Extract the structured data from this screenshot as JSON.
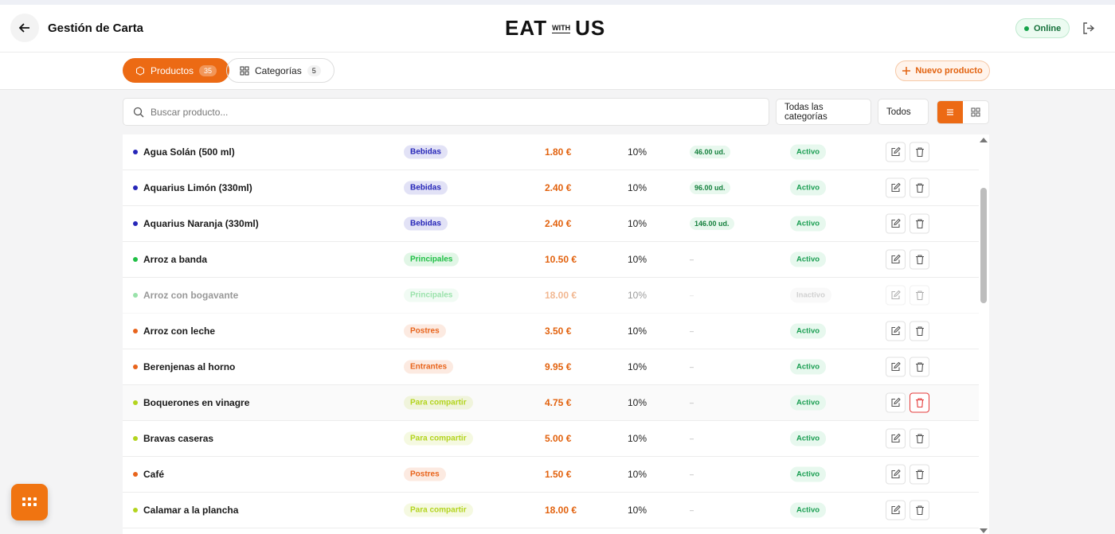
{
  "header": {
    "title": "Gestión de Carta",
    "logo": [
      "EAT",
      "WITH",
      "US"
    ],
    "status": "Online"
  },
  "tabs": [
    {
      "label": "Productos",
      "count": "35"
    },
    {
      "label": "Categorías",
      "count": "5"
    }
  ],
  "new_button": "Nuevo producto",
  "filters": {
    "search_placeholder": "Buscar producto...",
    "category": "Todas las categorías",
    "status": "Todos"
  },
  "rows": [
    {
      "name": "Agua Solán (500 ml)",
      "category": "Bebidas",
      "price": "1.80 €",
      "tax": "10%",
      "stock": "46.00 ud.",
      "status": "Activo",
      "color": "#2626b8"
    },
    {
      "name": "Aquarius Limón (330ml)",
      "category": "Bebidas",
      "price": "2.40 €",
      "tax": "10%",
      "stock": "96.00 ud.",
      "status": "Activo",
      "color": "#2626b8"
    },
    {
      "name": "Aquarius Naranja (330ml)",
      "category": "Bebidas",
      "price": "2.40 €",
      "tax": "10%",
      "stock": "146.00 ud.",
      "status": "Activo",
      "color": "#2626b8"
    },
    {
      "name": "Arroz a banda",
      "category": "Principales",
      "price": "10.50 €",
      "tax": "10%",
      "stock": "–",
      "status": "Activo",
      "color": "#1fbf45"
    },
    {
      "name": "Arroz con bogavante",
      "category": "Principales",
      "price": "18.00 €",
      "tax": "10%",
      "stock": "–",
      "status": "Inactivo",
      "color": "#1fbf45"
    },
    {
      "name": "Arroz con leche",
      "category": "Postres",
      "price": "3.50 €",
      "tax": "10%",
      "stock": "–",
      "status": "Activo",
      "color": "#e8641c"
    },
    {
      "name": "Berenjenas al horno",
      "category": "Entrantes",
      "price": "9.95 €",
      "tax": "10%",
      "stock": "–",
      "status": "Activo",
      "color": "#e8641c"
    },
    {
      "name": "Boquerones en vinagre",
      "category": "Para compartir",
      "price": "4.75 €",
      "tax": "10%",
      "stock": "–",
      "status": "Activo",
      "color": "#b3d41e"
    },
    {
      "name": "Bravas caseras",
      "category": "Para compartir",
      "price": "5.00 €",
      "tax": "10%",
      "stock": "–",
      "status": "Activo",
      "color": "#b3d41e"
    },
    {
      "name": "Café",
      "category": "Postres",
      "price": "1.50 €",
      "tax": "10%",
      "stock": "–",
      "status": "Activo",
      "color": "#e8641c"
    },
    {
      "name": "Calamar a la plancha",
      "category": "Para compartir",
      "price": "18.00 €",
      "tax": "10%",
      "stock": "–",
      "status": "Activo",
      "color": "#b3d41e"
    }
  ]
}
